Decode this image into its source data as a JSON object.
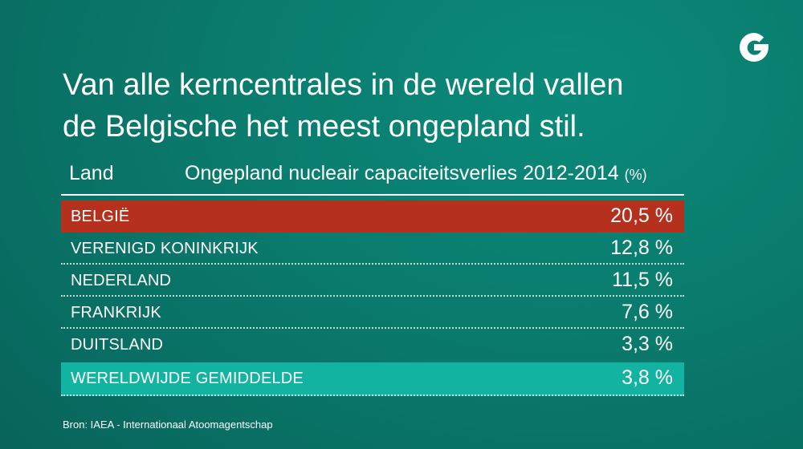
{
  "title_lines": [
    "Van alle kerncentrales in de wereld vallen",
    "de Belgische het meest ongepland stil."
  ],
  "logo_letter": "G",
  "colors": {
    "background": "#0a7a6c",
    "highlight_belgium": "#b5311e",
    "highlight_world_avg": "#13b3a2",
    "text": "#ffffff"
  },
  "chart_data": {
    "type": "table",
    "columns": {
      "country": "Land",
      "metric": "Ongepland nucleair capaciteitsverlies 2012-2014",
      "unit": "(%)"
    },
    "rows": [
      {
        "country": "België",
        "value_label": "20,5 %",
        "value": 20.5
      },
      {
        "country": "Verenigd Koninkrijk",
        "value_label": "12,8 %",
        "value": 12.8
      },
      {
        "country": "Nederland",
        "value_label": "11,5 %",
        "value": 11.5
      },
      {
        "country": "Frankrijk",
        "value_label": "7,6 %",
        "value": 7.6
      },
      {
        "country": "Duitsland",
        "value_label": "3,3 %",
        "value": 3.3
      },
      {
        "country": "Wereldwijde gemiddelde",
        "value_label": "3,8 %",
        "value": 3.8
      }
    ]
  },
  "source": "Bron: IAEA - Internationaal Atoomagentschap"
}
